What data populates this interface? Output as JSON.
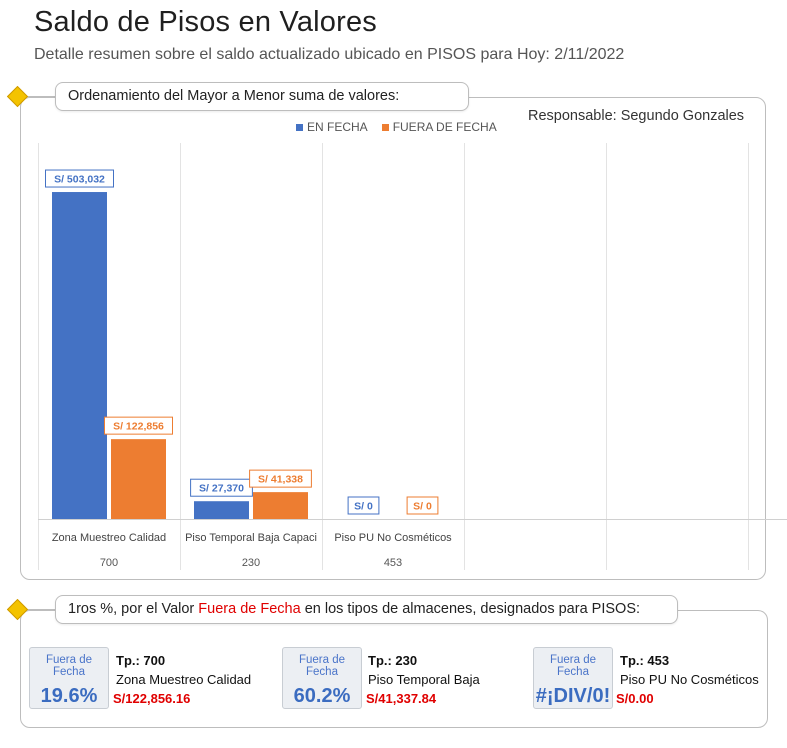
{
  "header": {
    "title": "Saldo de Pisos en Valores",
    "subtitle": "Detalle resumen sobre el saldo actualizado ubicado en PISOS para Hoy: 2/11/2022"
  },
  "chart_section": {
    "callout": "Ordenamiento del Mayor a Menor suma de valores:",
    "responsable": "Responsable: Segundo Gonzales"
  },
  "chart_data": {
    "type": "bar",
    "categories": [
      "Zona Muestreo Calidad",
      "Piso Temporal Baja Capaci",
      "Piso PU No Cosméticos",
      "",
      "",
      ""
    ],
    "category_codes": [
      "700",
      "230",
      "453",
      "",
      "",
      ""
    ],
    "series": [
      {
        "name": "EN FECHA",
        "color": "#4472c4",
        "values": [
          503032,
          27370,
          0,
          null,
          null,
          null
        ],
        "labels": [
          "S/ 503,032",
          "S/ 27,370",
          "S/ 0",
          "",
          "",
          ""
        ]
      },
      {
        "name": "FUERA DE FECHA",
        "color": "#ed7d31",
        "values": [
          122856,
          41338,
          0,
          null,
          null,
          null
        ],
        "labels": [
          "S/ 122,856",
          "S/ 41,338",
          "S/ 0",
          "",
          "",
          ""
        ]
      }
    ],
    "ylim": [
      0,
      560000
    ],
    "legend_position": "top",
    "grid": "vertical"
  },
  "pct_section": {
    "callout_before": "1ros %, por el Valor ",
    "callout_highlight": "Fuera de Fecha",
    "callout_after": " en los tipos de almacenes, designados para PISOS:",
    "cards": [
      {
        "box_label": "Fuera de Fecha",
        "pct": "19.6%",
        "tp": "Tp.: 700",
        "name": "Zona Muestreo Calidad",
        "money": "S/122,856.16"
      },
      {
        "box_label": "Fuera de Fecha",
        "pct": "60.2%",
        "tp": "Tp.: 230",
        "name": "Piso Temporal Baja",
        "money": "S/41,337.84"
      },
      {
        "box_label": "Fuera de Fecha",
        "pct": "#¡DIV/0!",
        "tp": "Tp.: 453",
        "name": "Piso PU No Cosméticos",
        "money": "S/0.00"
      }
    ]
  }
}
